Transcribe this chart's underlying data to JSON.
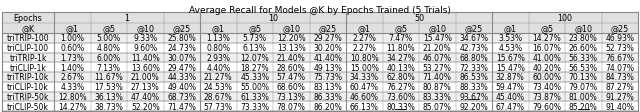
{
  "title": "Average Recall for Models @K by Epochs Trained (5 Trials)",
  "col_groups": [
    "1",
    "10",
    "50",
    "100"
  ],
  "sub_cols": [
    "@1",
    "@5",
    "@10",
    "@25"
  ],
  "row_labels": [
    "triTRIP-100",
    "triCLIP-100",
    "triTRIP-1k",
    "triCLIP-1k",
    "triTRIP-10k",
    "triCLIP-10k",
    "triTRIP-50k",
    "triCLIP-50k"
  ],
  "data": [
    [
      "1.00%",
      "5.00%",
      "9.33%",
      "25.80%",
      "1.13%",
      "5.73%",
      "12.20%",
      "29.27%",
      "2.27%",
      "7.47%",
      "15.47%",
      "34.67%",
      "3.53%",
      "14.27%",
      "23.80%",
      "46.93%"
    ],
    [
      "0.60%",
      "4.80%",
      "9.60%",
      "24.73%",
      "0.80%",
      "6.13%",
      "13.13%",
      "30.20%",
      "2.27%",
      "11.80%",
      "21.20%",
      "42.73%",
      "4.53%",
      "16.07%",
      "26.60%",
      "52.73%"
    ],
    [
      "1.73%",
      "6.00%",
      "11.40%",
      "30.07%",
      "2.93%",
      "12.07%",
      "21.40%",
      "41.40%",
      "10.80%",
      "34.27%",
      "46.07%",
      "68.80%",
      "15.67%",
      "41.00%",
      "56.33%",
      "76.67%"
    ],
    [
      "1.40%",
      "7.13%",
      "13.60%",
      "29.47%",
      "4.40%",
      "18.27%",
      "28.60%",
      "49.13%",
      "15.00%",
      "40.13%",
      "53.27%",
      "72.33%",
      "15.47%",
      "40.20%",
      "56.53%",
      "74.07%"
    ],
    [
      "2.67%",
      "11.67%",
      "21.00%",
      "44.33%",
      "21.27%",
      "45.33%",
      "57.47%",
      "75.73%",
      "34.33%",
      "62.80%",
      "71.40%",
      "86.53%",
      "32.87%",
      "60.00%",
      "70.13%",
      "84.73%"
    ],
    [
      "4.33%",
      "17.53%",
      "27.13%",
      "49.40%",
      "24.53%",
      "55.00%",
      "68.60%",
      "83.13%",
      "60.47%",
      "76.27%",
      "80.87%",
      "88.33%",
      "59.47%",
      "73.40%",
      "79.07%",
      "87.27%"
    ],
    [
      "12.80%",
      "36.13%",
      "47.40%",
      "68.73%",
      "28.67%",
      "61.33%",
      "73.13%",
      "86.33%",
      "46.60%",
      "73.60%",
      "83.33%",
      "93.67%",
      "45.40%",
      "73.87%",
      "81.00%",
      "91.27%"
    ],
    [
      "14.27%",
      "38.73%",
      "52.20%",
      "71.47%",
      "57.73%",
      "73.33%",
      "78.07%",
      "86.20%",
      "66.13%",
      "80.33%",
      "85.07%",
      "92.20%",
      "67.47%",
      "79.60%",
      "85.20%",
      "91.40%"
    ]
  ],
  "underlined": [
    [
      6,
      11
    ],
    [
      7,
      9
    ],
    [
      7,
      14
    ]
  ],
  "header_bg": "#e0e0e0",
  "alt_row_bg": "#efefef",
  "row_bg": "#ffffff",
  "border_color": "#888888",
  "title_fontsize": 6.5,
  "header_fontsize": 5.8,
  "cell_fontsize": 5.5,
  "label_fontsize": 5.5
}
